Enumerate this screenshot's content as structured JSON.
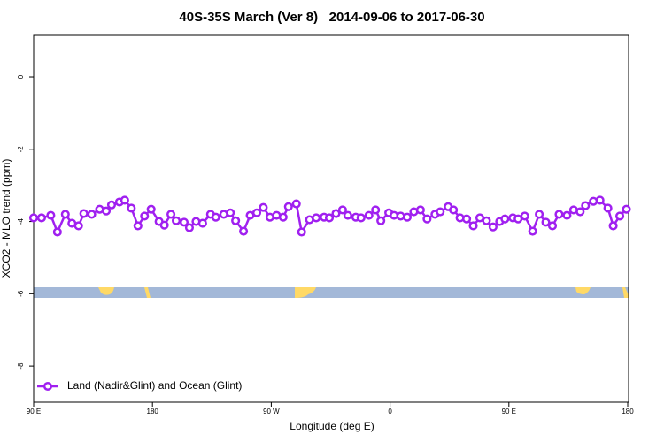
{
  "chart_data": {
    "type": "line",
    "title": "40S-35S March (Ver 8)   2014-09-06 to 2017-06-30",
    "x_label": "Longitude (deg E)",
    "y_label": "XCO2 - MLO trend (ppm)",
    "x": [
      90,
      96,
      103,
      108,
      114,
      119,
      124,
      128,
      134,
      140,
      145,
      149,
      155,
      159,
      164,
      169,
      174,
      179,
      185,
      189,
      194,
      198,
      204,
      208,
      213,
      218,
      224,
      228,
      234,
      239,
      243,
      249,
      254,
      259,
      264,
      269,
      274,
      279,
      283,
      289,
      293,
      299,
      304,
      310,
      314,
      319,
      324,
      328,
      334,
      338,
      344,
      349,
      353,
      359,
      363,
      368,
      373,
      378,
      383,
      388,
      394,
      398,
      404,
      408,
      413,
      418,
      423,
      428,
      433,
      438,
      443,
      447,
      453,
      457,
      462,
      468,
      473,
      478,
      483,
      488,
      494,
      499,
      504,
      508,
      514,
      519,
      525,
      529,
      534,
      539
    ],
    "series": [
      {
        "name": "Land (Nadir&Glint) and Ocean (Glint)",
        "color": "#a020f0",
        "values": [
          -3.9,
          -3.9,
          -3.83,
          -4.29,
          -3.8,
          -4.05,
          -4.12,
          -3.78,
          -3.8,
          -3.66,
          -3.71,
          -3.54,
          -3.46,
          -3.41,
          -3.63,
          -4.12,
          -3.85,
          -3.66,
          -4.0,
          -4.1,
          -3.8,
          -3.98,
          -4.02,
          -4.17,
          -4.0,
          -4.05,
          -3.8,
          -3.88,
          -3.8,
          -3.76,
          -3.98,
          -4.27,
          -3.83,
          -3.76,
          -3.61,
          -3.88,
          -3.83,
          -3.88,
          -3.59,
          -3.51,
          -4.29,
          -3.95,
          -3.9,
          -3.88,
          -3.9,
          -3.78,
          -3.68,
          -3.83,
          -3.88,
          -3.9,
          -3.83,
          -3.68,
          -3.98,
          -3.76,
          -3.83,
          -3.85,
          -3.88,
          -3.73,
          -3.68,
          -3.93,
          -3.8,
          -3.73,
          -3.59,
          -3.68,
          -3.9,
          -3.93,
          -4.12,
          -3.9,
          -3.98,
          -4.15,
          -4.0,
          -3.93,
          -3.9,
          -3.93,
          -3.85,
          -4.27,
          -3.8,
          -4.02,
          -4.12,
          -3.8,
          -3.83,
          -3.68,
          -3.73,
          -3.56,
          -3.44,
          -3.41,
          -3.63,
          -4.12,
          -3.85,
          -3.66
        ]
      }
    ],
    "xlim": [
      90,
      540
    ],
    "xticks": [
      {
        "value": 90,
        "label": "90 E"
      },
      {
        "value": 180,
        "label": "180"
      },
      {
        "value": 270,
        "label": "90 W"
      },
      {
        "value": 360,
        "label": "0"
      },
      {
        "value": 450,
        "label": "90 E"
      },
      {
        "value": 540,
        "label": "180"
      }
    ],
    "ylim": [
      -9,
      1.15
    ],
    "yticks": [
      0,
      -2,
      -4,
      -6,
      -8
    ],
    "legend": "bottom-left"
  }
}
